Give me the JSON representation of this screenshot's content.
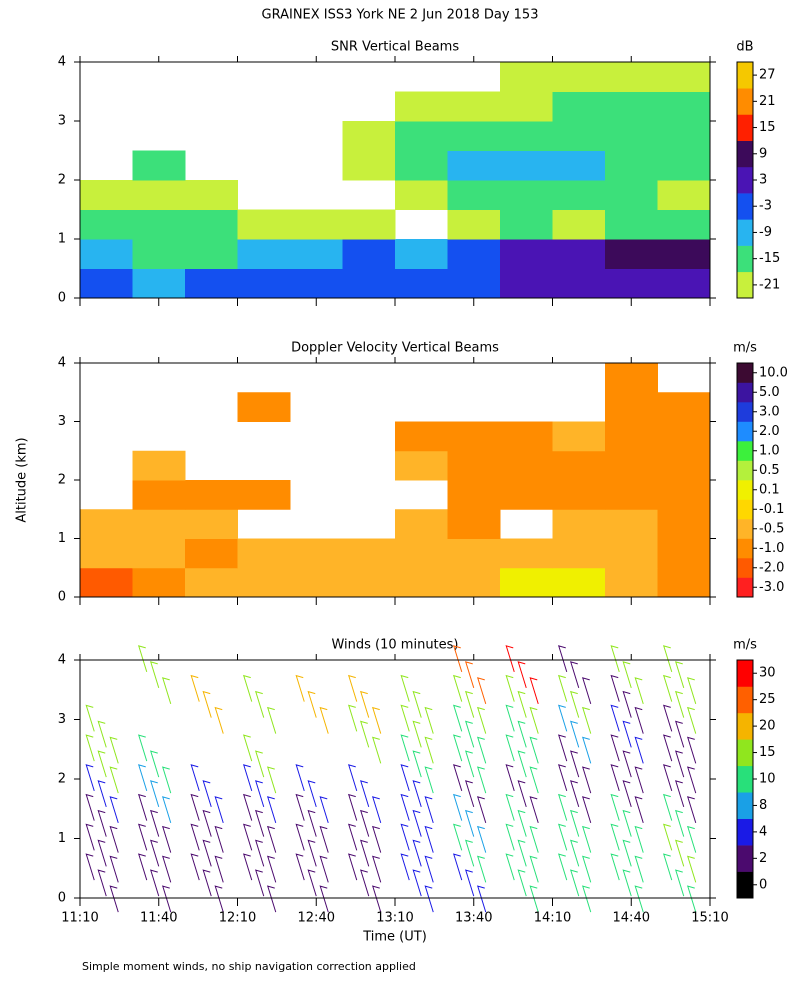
{
  "title": "GRAINEX ISS3 York NE   2 Jun 2018 Day 153",
  "footnote": "Simple moment winds, no ship navigation correction applied",
  "chart_data": [
    {
      "type": "heatmap",
      "title": "SNR Vertical Beams",
      "xlim": [
        670,
        910
      ],
      "ylim": [
        0,
        4
      ],
      "yticks": [
        0,
        1,
        2,
        3,
        4
      ],
      "x": [
        680,
        700,
        720,
        740,
        760,
        780,
        800,
        820,
        840,
        860,
        880,
        900
      ],
      "y": [
        0.25,
        0.75,
        1.25,
        1.75,
        2.25,
        2.75,
        3.25,
        3.75
      ],
      "values": [
        [
          -3,
          -6,
          -3,
          -3,
          -3,
          -3,
          -3,
          0,
          3,
          6,
          6,
          6
        ],
        [
          -9,
          -12,
          -12,
          -6,
          -6,
          -3,
          -6,
          -3,
          3,
          6,
          9,
          9
        ],
        [
          -12,
          -15,
          -15,
          -18,
          -21,
          -18,
          null,
          -18,
          -15,
          -18,
          -15,
          -15
        ],
        [
          -21,
          -18,
          -21,
          null,
          null,
          null,
          -18,
          -15,
          -15,
          -15,
          -15,
          -18
        ],
        [
          null,
          -15,
          null,
          null,
          null,
          -21,
          -12,
          -9,
          -6,
          -6,
          -12,
          -15
        ],
        [
          null,
          null,
          null,
          null,
          null,
          -18,
          -15,
          -12,
          -12,
          -15,
          -15,
          -15
        ],
        [
          null,
          null,
          null,
          null,
          null,
          null,
          -21,
          -18,
          -18,
          -15,
          -15,
          -15
        ],
        [
          null,
          null,
          null,
          null,
          null,
          null,
          null,
          null,
          -21,
          -21,
          -18,
          -18
        ]
      ],
      "colorbar": {
        "label": "dB",
        "ticks": [
          -21,
          -15,
          -9,
          -3,
          3,
          9,
          15,
          21,
          27
        ],
        "colors": [
          "#c8f03c",
          "#3ce07a",
          "#28b4f0",
          "#1450f0",
          "#4a14b4",
          "#3c0a5a",
          "#ff2000",
          "#ff8c00",
          "#f5c800"
        ]
      }
    },
    {
      "type": "heatmap",
      "title": "Doppler Velocity Vertical Beams",
      "ylabel": "Altitude (km)",
      "xlim": [
        670,
        910
      ],
      "ylim": [
        0,
        4
      ],
      "yticks": [
        0,
        1,
        2,
        3,
        4
      ],
      "x": [
        680,
        700,
        720,
        740,
        760,
        780,
        800,
        820,
        840,
        860,
        880,
        900
      ],
      "y": [
        0.25,
        0.75,
        1.25,
        1.75,
        2.25,
        2.75,
        3.25,
        3.75
      ],
      "values": [
        [
          -1.5,
          -1,
          -0.5,
          -0.5,
          -0.3,
          -0.3,
          -0.3,
          -0.3,
          0.3,
          0.3,
          -0.5,
          -1
        ],
        [
          -0.5,
          -0.5,
          -0.7,
          -0.5,
          -0.5,
          -0.3,
          -0.3,
          -0.5,
          -0.3,
          -0.5,
          -0.5,
          -0.7
        ],
        [
          -0.3,
          -0.5,
          -0.5,
          null,
          null,
          null,
          -0.5,
          -0.7,
          null,
          -0.5,
          -0.5,
          -0.7
        ],
        [
          null,
          -0.7,
          -0.7,
          -0.7,
          null,
          null,
          null,
          -0.7,
          -0.7,
          -0.7,
          -0.7,
          -0.7
        ],
        [
          null,
          -0.2,
          null,
          null,
          null,
          null,
          -0.5,
          -0.7,
          -0.7,
          -0.7,
          -0.7,
          -0.7
        ],
        [
          null,
          null,
          null,
          null,
          null,
          null,
          -0.7,
          -0.7,
          -0.7,
          -0.5,
          -1,
          -1
        ],
        [
          null,
          null,
          null,
          -0.7,
          null,
          null,
          null,
          null,
          null,
          null,
          -0.7,
          -1
        ],
        [
          null,
          null,
          null,
          null,
          null,
          null,
          null,
          null,
          null,
          null,
          -0.7,
          null
        ]
      ],
      "colorbar": {
        "label": "m/s",
        "ticks": [
          {
            "value": -3,
            "label": "-3.0"
          },
          {
            "value": -2,
            "label": "-2.0"
          },
          {
            "value": -1,
            "label": "-1.0"
          },
          -0.5,
          -0.1,
          0.1,
          0.5,
          {
            "value": 1,
            "label": "1.0"
          },
          {
            "value": 2,
            "label": "2.0"
          },
          {
            "value": 3,
            "label": "3.0"
          },
          {
            "value": 5,
            "label": "5.0"
          },
          {
            "value": 10,
            "label": "10.0"
          }
        ],
        "colors": [
          "#ff2020",
          "#ff5a00",
          "#ff8c00",
          "#ffb428",
          "#ffd700",
          "#f0f000",
          "#b4f03c",
          "#3cf03c",
          "#1e8cff",
          "#1e3cdc",
          "#3c14a0",
          "#3c0a32"
        ]
      }
    },
    {
      "type": "barbs",
      "title": "Winds (10 minutes)",
      "xlabel": "Time (UT)",
      "xlim": [
        670,
        910
      ],
      "ylim": [
        0,
        4
      ],
      "yticks": [
        0,
        1,
        2,
        3,
        4
      ],
      "xticks": [
        {
          "value": 670,
          "label": "11:10"
        },
        {
          "value": 700,
          "label": "11:40"
        },
        {
          "value": 730,
          "label": "12:10"
        },
        {
          "value": 760,
          "label": "12:40"
        },
        {
          "value": 790,
          "label": "13:10"
        },
        {
          "value": 820,
          "label": "13:40"
        },
        {
          "value": 850,
          "label": "14:10"
        },
        {
          "value": 880,
          "label": "14:40"
        },
        {
          "value": 910,
          "label": "15:10"
        }
      ],
      "x": [
        680,
        700,
        720,
        740,
        760,
        780,
        800,
        820,
        840,
        860,
        880,
        900
      ],
      "y": [
        0.25,
        0.75,
        1.25,
        1.75,
        2.25,
        2.75,
        3.25,
        3.75
      ],
      "values": [
        [
          3,
          3,
          2,
          3,
          3,
          3,
          4,
          6,
          10,
          12,
          12,
          13
        ],
        [
          3,
          3,
          3,
          3,
          3,
          3,
          6,
          10,
          10,
          13,
          14,
          15
        ],
        [
          3,
          3,
          3,
          3,
          3,
          3,
          4,
          8,
          10,
          12,
          14,
          14
        ],
        [
          6,
          8,
          5,
          4,
          4,
          4,
          5,
          3,
          3,
          3,
          3,
          3
        ],
        [
          15,
          12,
          null,
          15,
          null,
          null,
          12,
          12,
          12,
          3,
          3,
          3
        ],
        [
          15,
          null,
          null,
          null,
          null,
          15,
          15,
          10,
          12,
          8,
          6,
          3
        ],
        [
          null,
          null,
          20,
          18,
          20,
          20,
          15,
          15,
          15,
          15,
          3,
          18
        ],
        [
          null,
          18,
          null,
          null,
          null,
          null,
          null,
          25,
          30,
          3,
          17,
          15
        ]
      ],
      "colorbar": {
        "label": "m/s",
        "ticks": [
          0,
          2,
          4,
          8,
          10,
          15,
          20,
          25,
          30
        ],
        "colors": [
          "#000000",
          "#4b0a6e",
          "#1a1ae6",
          "#1aa0e6",
          "#28e07a",
          "#90e61e",
          "#f5b400",
          "#ff6000",
          "#ff0000"
        ]
      }
    }
  ]
}
